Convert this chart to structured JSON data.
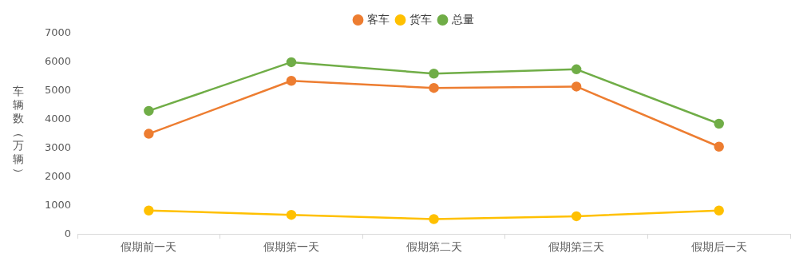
{
  "chart_data": {
    "type": "line",
    "ylabel": "车辆数（万辆）",
    "categories": [
      "假期前一天",
      "假期第一天",
      "假期第二天",
      "假期第三天",
      "假期后一天"
    ],
    "series": [
      {
        "name": "客车",
        "color": "#ed7d31",
        "values": [
          3500,
          5350,
          5100,
          5150,
          3050
        ]
      },
      {
        "name": "货车",
        "color": "#ffc000",
        "values": [
          820,
          670,
          520,
          620,
          820
        ]
      },
      {
        "name": "总量",
        "color": "#70ad47",
        "values": [
          4300,
          6000,
          5600,
          5750,
          3850
        ]
      }
    ],
    "ylim": [
      0,
      7000
    ],
    "yticks": [
      0,
      1000,
      2000,
      3000,
      4000,
      5000,
      6000,
      7000
    ],
    "grid": false,
    "legend": "top",
    "marker": "circle",
    "line_style": "solid"
  }
}
